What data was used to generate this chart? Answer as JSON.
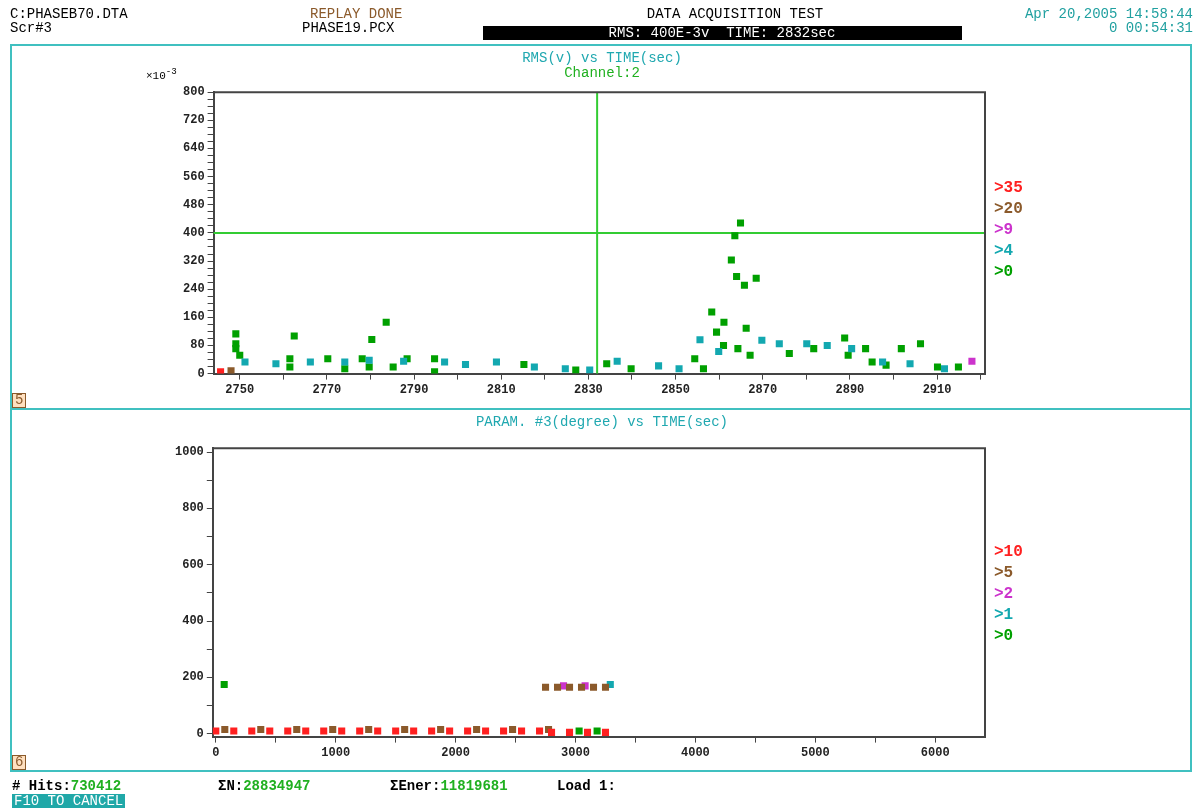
{
  "chart_data": [
    {
      "type": "scatter",
      "title": "RMS(v) vs TIME(sec)",
      "subtitle": "Channel:2",
      "ylabel": "×10$^{-3}$",
      "annotations": [
        "C:PHASEB70.DTA",
        "Scr#3",
        "REPLAY DONE",
        "PHASE19.PCX",
        "DATA ACQUISITION TEST",
        "RMS: 400E-3v  TIME: 2832sec",
        "Apr 20,2005 14:58:44",
        "0 00:54:31",
        "5"
      ],
      "xlim": [
        2744,
        2921
      ],
      "xticks": [
        2750,
        {
          "value": 2760,
          "label": null
        },
        2770,
        {
          "value": 2780,
          "label": null
        },
        2790,
        {
          "value": 2800,
          "label": null
        },
        2810,
        {
          "value": 2820,
          "label": null
        },
        2830,
        {
          "value": 2840,
          "label": null
        },
        2850,
        {
          "value": 2860,
          "label": null
        },
        2870,
        {
          "value": 2880,
          "label": null
        },
        2890,
        {
          "value": 2900,
          "label": null
        },
        2910,
        {
          "value": 2920,
          "label": null
        }
      ],
      "ylim": [
        0,
        800
      ],
      "yticks": [
        0,
        {
          "value": 20,
          "label": null
        },
        {
          "value": 40,
          "label": null
        },
        {
          "value": 60,
          "label": null
        },
        80,
        {
          "value": 100,
          "label": null
        },
        {
          "value": 120,
          "label": null
        },
        {
          "value": 140,
          "label": null
        },
        160,
        {
          "value": 180,
          "label": null
        },
        {
          "value": 200,
          "label": null
        },
        {
          "value": 220,
          "label": null
        },
        240,
        {
          "value": 260,
          "label": null
        },
        {
          "value": 280,
          "label": null
        },
        {
          "value": 300,
          "label": null
        },
        320,
        {
          "value": 340,
          "label": null
        },
        {
          "value": 360,
          "label": null
        },
        {
          "value": 380,
          "label": null
        },
        400,
        {
          "value": 420,
          "label": null
        },
        {
          "value": 440,
          "label": null
        },
        {
          "value": 460,
          "label": null
        },
        480,
        {
          "value": 500,
          "label": null
        },
        {
          "value": 520,
          "label": null
        },
        {
          "value": 540,
          "label": null
        },
        560,
        {
          "value": 580,
          "label": null
        },
        {
          "value": 600,
          "label": null
        },
        {
          "value": 620,
          "label": null
        },
        640,
        {
          "value": 660,
          "label": null
        },
        {
          "value": 680,
          "label": null
        },
        {
          "value": 700,
          "label": null
        },
        720,
        {
          "value": 740,
          "label": null
        },
        {
          "value": 760,
          "label": null
        },
        {
          "value": 780,
          "label": null
        },
        800
      ],
      "grid": false,
      "legend": "right",
      "marker": "square",
      "ref_lines": [
        {
          "axis": "y",
          "value": 400,
          "color": "#33cc33"
        },
        {
          "axis": "x",
          "value": 2832,
          "color": "#33cc33"
        }
      ],
      "series": [
        {
          "name": ">35",
          "color": "#ff2020",
          "x": [
            2745.6
          ],
          "values": [
            5
          ]
        },
        {
          "name": ">20",
          "color": "#8b5a2b",
          "x": [
            2748
          ],
          "values": [
            8
          ]
        },
        {
          "name": ">9",
          "color": "#cc33cc",
          "x": [
            2918
          ],
          "values": [
            35
          ]
        },
        {
          "name": ">4",
          "color": "#13a8b0",
          "x": [
            2751.2,
            2758.3,
            2766.2,
            2774.1,
            2779.7,
            2787.6,
            2797,
            2801.8,
            2808.9,
            2817.6,
            2824.7,
            2830.3,
            2836.6,
            2846.1,
            2850.8,
            2855.6,
            2859.9,
            2869.8,
            2873.8,
            2880.1,
            2884.8,
            2890.4,
            2897.5,
            2903.8,
            2911.7
          ],
          "values": [
            33,
            28,
            33,
            33,
            38,
            35,
            33,
            26,
            33,
            19,
            14,
            10,
            35,
            22,
            14,
            96,
            63,
            95,
            85,
            85,
            80,
            71,
            33,
            28,
            14
          ]
        },
        {
          "name": ">0",
          "color": "#00a000",
          "x": [
            2749.1,
            2749.1,
            2749.1,
            2750,
            2761.5,
            2761.5,
            2762.5,
            2770.2,
            2774.1,
            2778.1,
            2779.7,
            2780.3,
            2783.6,
            2785.2,
            2788.4,
            2794.7,
            2794.7,
            2815.2,
            2827.1,
            2834.2,
            2839.8,
            2854.4,
            2856.4,
            2858.3,
            2859.4,
            2861,
            2861.1,
            2862.8,
            2863.6,
            2864,
            2864.3,
            2864.9,
            2865.8,
            2866.2,
            2867.1,
            2868.5,
            2876.1,
            2881.7,
            2888.8,
            2889.6,
            2893.6,
            2895.1,
            2898.3,
            2901.8,
            2906.2,
            2910.1,
            2914.9
          ],
          "values": [
            113,
            85,
            71,
            52,
            42,
            19,
            107,
            42,
            14,
            42,
            19,
            97,
            146,
            19,
            42,
            42,
            5,
            26,
            10,
            28,
            14,
            42,
            14,
            175,
            118,
            80,
            146,
            323,
            392,
            276,
            71,
            428,
            251,
            129,
            52,
            271,
            57,
            71,
            101,
            52,
            71,
            33,
            24,
            71,
            85,
            19,
            19
          ]
        }
      ]
    },
    {
      "type": "scatter",
      "title": "PARAM. #3(degree) vs TIME(sec)",
      "annotations": [
        "6",
        "# Hits:",
        "730412",
        "ΣN:",
        "28834947",
        "ΣEner:",
        "11819681",
        "Load 1:",
        "F10 TO CANCEL"
      ],
      "xlim": [
        -25,
        6415
      ],
      "xticks": [
        0,
        {
          "value": 500,
          "label": null
        },
        1000,
        {
          "value": 1500,
          "label": null
        },
        2000,
        {
          "value": 2500,
          "label": null
        },
        3000,
        {
          "value": 3500,
          "label": null
        },
        4000,
        {
          "value": 4500,
          "label": null
        },
        5000,
        {
          "value": 5500,
          "label": null
        },
        6000
      ],
      "ylim": [
        -10,
        1014
      ],
      "yticks": [
        0,
        {
          "value": 100,
          "label": null
        },
        200,
        {
          "value": 300,
          "label": null
        },
        400,
        {
          "value": 500,
          "label": null
        },
        600,
        {
          "value": 700,
          "label": null
        },
        800,
        {
          "value": 900,
          "label": null
        },
        1000
      ],
      "grid": false,
      "legend": "right",
      "marker": "square",
      "series": [
        {
          "name": ">10",
          "color": "#ff2020",
          "x": [
            0,
            150,
            300,
            450,
            600,
            750,
            900,
            1050,
            1200,
            1350,
            1500,
            1650,
            1800,
            1950,
            2100,
            2250,
            2400,
            2550,
            2700,
            2800,
            2950,
            3100,
            3250
          ],
          "values": [
            10,
            10,
            10,
            10,
            10,
            10,
            10,
            10,
            10,
            10,
            10,
            10,
            10,
            10,
            10,
            10,
            10,
            10,
            10,
            5,
            5,
            5,
            5
          ]
        },
        {
          "name": ">5",
          "color": "#8b5a2b",
          "x": [
            75,
            375,
            675,
            975,
            1275,
            1575,
            1875,
            2175,
            2475,
            2775,
            2750,
            2850,
            2950,
            3050,
            3150,
            3250
          ],
          "values": [
            15,
            15,
            15,
            15,
            15,
            15,
            15,
            15,
            15,
            15,
            165,
            165,
            165,
            165,
            165,
            165
          ]
        },
        {
          "name": ">2",
          "color": "#cc33cc",
          "x": [
            2900,
            3080
          ],
          "values": [
            170,
            170
          ]
        },
        {
          "name": ">1",
          "color": "#13a8b0",
          "x": [
            3290
          ],
          "values": [
            175
          ]
        },
        {
          "name": ">0",
          "color": "#00a000",
          "x": [
            70,
            3030,
            3180
          ],
          "values": [
            175,
            10,
            10
          ]
        }
      ]
    }
  ]
}
